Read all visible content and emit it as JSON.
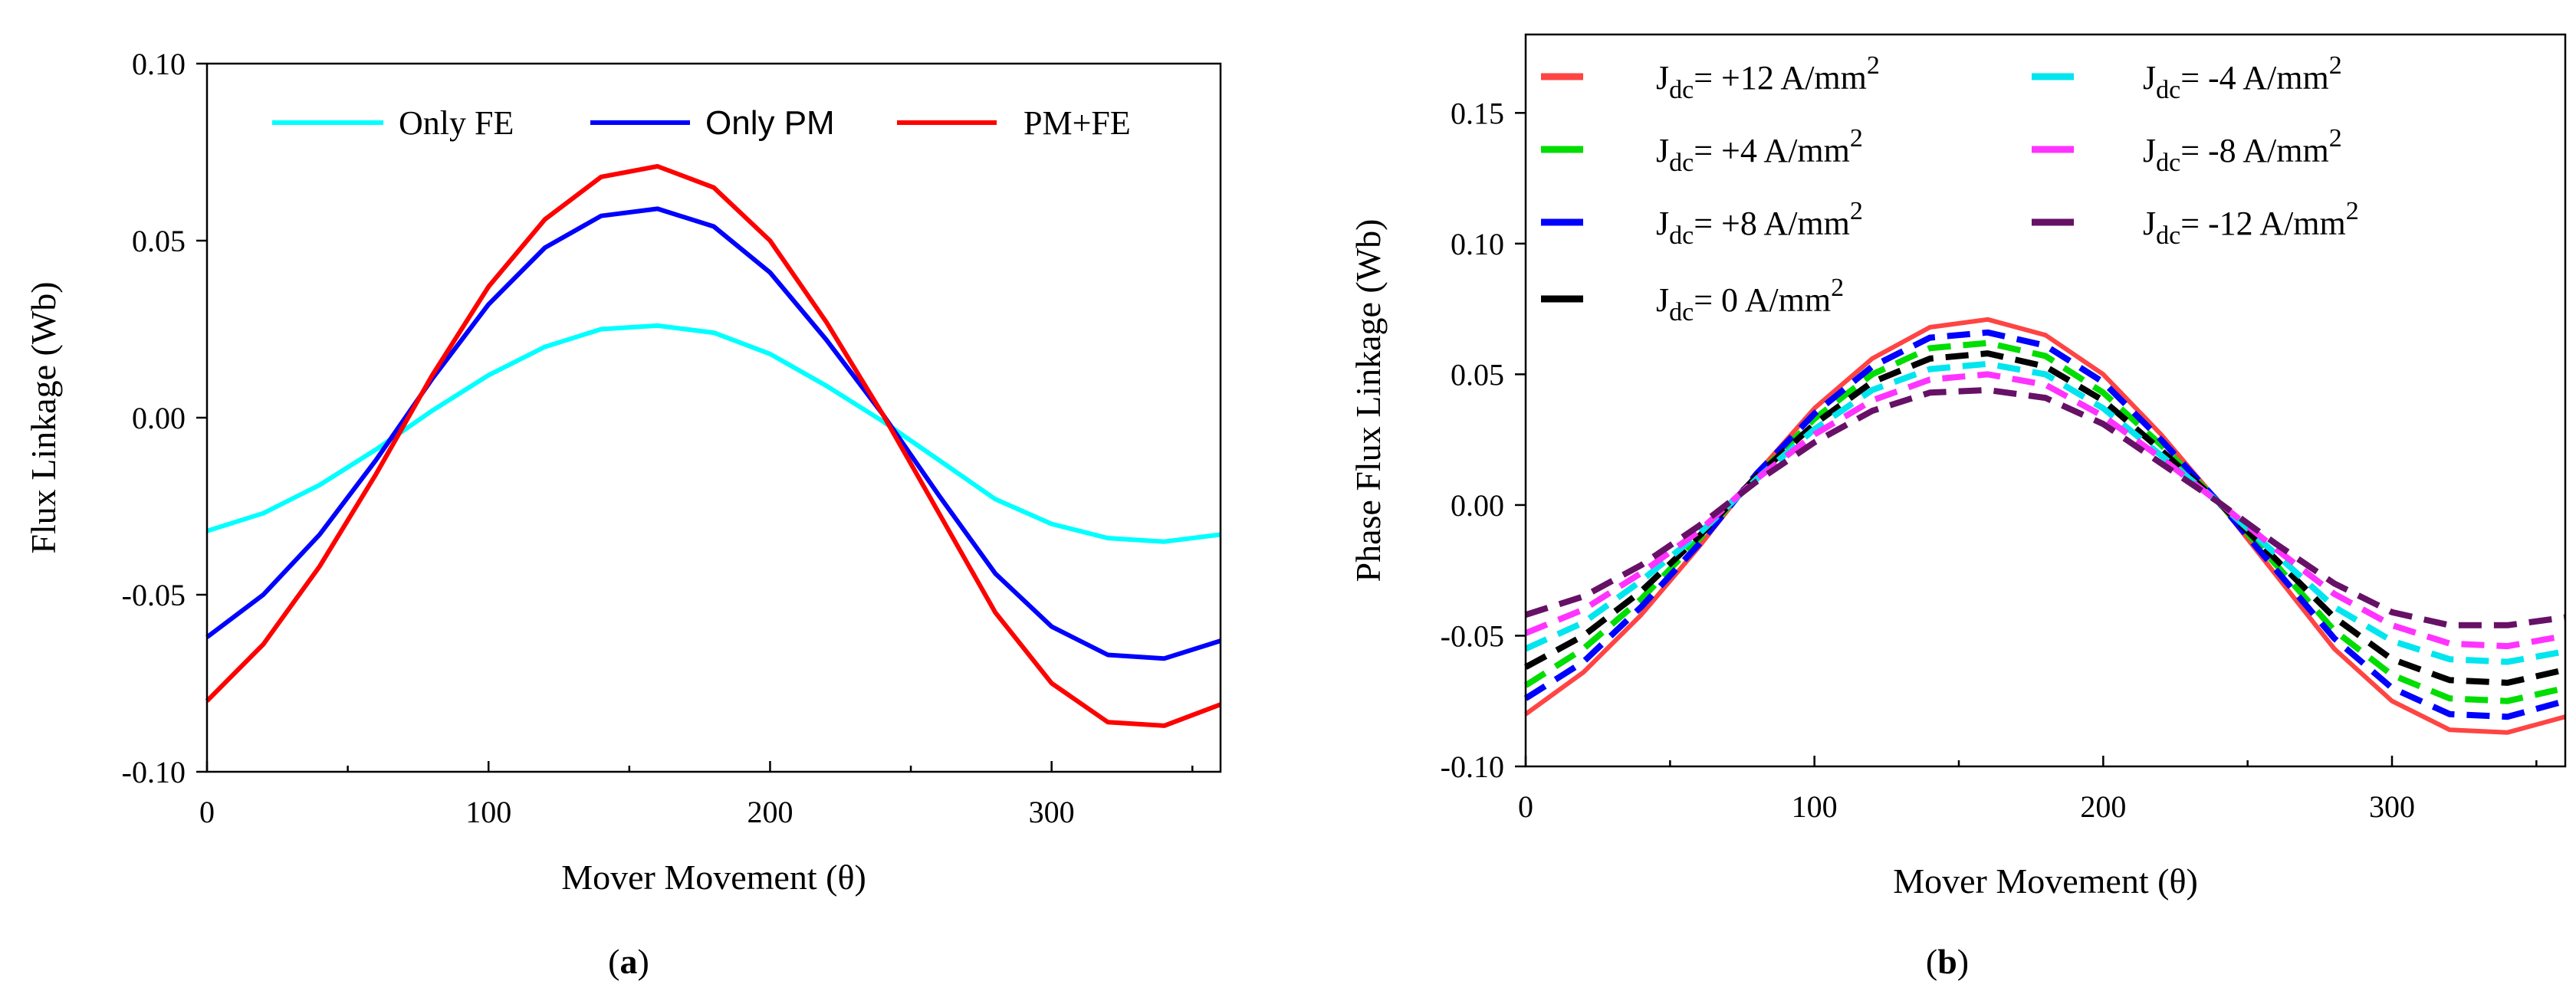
{
  "chart_data": [
    {
      "panel_label": "(a)",
      "panel_letter": "a",
      "type": "line",
      "xlabel": "Mover Movement (θ)",
      "ylabel": "Flux Linkage (Wb)",
      "xlim": [
        0,
        360
      ],
      "ylim": [
        -0.1,
        0.1
      ],
      "xticks": [
        "0",
        "100",
        "200",
        "300"
      ],
      "yticks": [
        "0.10",
        "0.05",
        "0.00",
        "-0.05",
        "-0.10"
      ],
      "grid": false,
      "legend_position": "top",
      "series": [
        {
          "name": "Only FE",
          "color": "#00ffff",
          "dash": "solid",
          "x": [
            0,
            20,
            40,
            60,
            80,
            100,
            120,
            140,
            160,
            180,
            200,
            220,
            240,
            260,
            280,
            300,
            320,
            340,
            360
          ],
          "y": [
            -0.032,
            -0.027,
            -0.019,
            -0.009,
            0.002,
            0.012,
            0.02,
            0.025,
            0.026,
            0.024,
            0.018,
            0.009,
            -0.001,
            -0.012,
            -0.023,
            -0.03,
            -0.034,
            -0.035,
            -0.033
          ]
        },
        {
          "name": "Only PM",
          "color": "#0000ff",
          "dash": "solid",
          "x": [
            0,
            20,
            40,
            60,
            80,
            100,
            120,
            140,
            160,
            180,
            200,
            220,
            240,
            260,
            280,
            300,
            320,
            340,
            360
          ],
          "y": [
            -0.062,
            -0.05,
            -0.033,
            -0.012,
            0.011,
            0.032,
            0.048,
            0.057,
            0.059,
            0.054,
            0.041,
            0.022,
            0.001,
            -0.022,
            -0.044,
            -0.059,
            -0.067,
            -0.068,
            -0.063
          ]
        },
        {
          "name": "PM+FE",
          "color": "#ff0000",
          "dash": "solid",
          "x": [
            0,
            20,
            40,
            60,
            80,
            100,
            120,
            140,
            160,
            180,
            200,
            220,
            240,
            260,
            280,
            300,
            320,
            340,
            360
          ],
          "y": [
            -0.08,
            -0.064,
            -0.042,
            -0.016,
            0.012,
            0.037,
            0.056,
            0.068,
            0.071,
            0.065,
            0.05,
            0.027,
            0.001,
            -0.027,
            -0.055,
            -0.075,
            -0.086,
            -0.087,
            -0.081
          ]
        }
      ]
    },
    {
      "panel_label": "(b)",
      "panel_letter": "b",
      "type": "line",
      "xlabel": "Mover Movement (θ)",
      "ylabel": "Phase Flux Linkage (Wb)",
      "xlim": [
        0,
        360
      ],
      "ylim": [
        -0.1,
        0.18
      ],
      "xticks": [
        "0",
        "100",
        "200",
        "300"
      ],
      "yticks": [
        "0.15",
        "0.10",
        "0.05",
        "0.00",
        "-0.05",
        "-0.10"
      ],
      "grid": false,
      "legend_position": "top",
      "series": [
        {
          "name": "Jdc= +12 A/mm2",
          "label_main": "J",
          "label_sub": "dc",
          "label_rest": "= +12 A/mm",
          "label_sup": "2",
          "color": "#ff4444",
          "dash": "solid",
          "x": [
            0,
            20,
            40,
            60,
            80,
            100,
            120,
            140,
            160,
            180,
            200,
            220,
            240,
            260,
            280,
            300,
            320,
            340,
            360
          ],
          "y": [
            -0.08,
            -0.064,
            -0.042,
            -0.016,
            0.012,
            0.037,
            0.056,
            0.068,
            0.071,
            0.065,
            0.05,
            0.027,
            0.001,
            -0.027,
            -0.055,
            -0.075,
            -0.086,
            -0.087,
            -0.081
          ]
        },
        {
          "name": "Jdc= +4 A/mm2",
          "label_main": "J",
          "label_sub": "dc",
          "label_rest": "= +4 A/mm",
          "label_sup": "2",
          "color": "#00dd00",
          "dash": "dashed",
          "x": [
            0,
            20,
            40,
            60,
            80,
            100,
            120,
            140,
            160,
            180,
            200,
            220,
            240,
            260,
            280,
            300,
            320,
            340,
            360
          ],
          "y": [
            -0.069,
            -0.055,
            -0.036,
            -0.013,
            0.011,
            0.033,
            0.05,
            0.06,
            0.062,
            0.057,
            0.043,
            0.023,
            0.001,
            -0.023,
            -0.048,
            -0.065,
            -0.074,
            -0.075,
            -0.07
          ]
        },
        {
          "name": "Jdc= +8 A/mm2",
          "label_main": "J",
          "label_sub": "dc",
          "label_rest": "= +8 A/mm",
          "label_sup": "2",
          "color": "#0000ff",
          "dash": "dashed",
          "x": [
            0,
            20,
            40,
            60,
            80,
            100,
            120,
            140,
            160,
            180,
            200,
            220,
            240,
            260,
            280,
            300,
            320,
            340,
            360
          ],
          "y": [
            -0.074,
            -0.06,
            -0.039,
            -0.015,
            0.012,
            0.035,
            0.053,
            0.064,
            0.066,
            0.061,
            0.047,
            0.025,
            0.001,
            -0.025,
            -0.051,
            -0.07,
            -0.08,
            -0.081,
            -0.075
          ]
        },
        {
          "name": "Jdc= 0 A/mm2",
          "label_main": "J",
          "label_sub": "dc",
          "label_rest": "= 0 A/mm",
          "label_sup": "2",
          "color": "#000000",
          "dash": "dashed",
          "x": [
            0,
            20,
            40,
            60,
            80,
            100,
            120,
            140,
            160,
            180,
            200,
            220,
            240,
            260,
            280,
            300,
            320,
            340,
            360
          ],
          "y": [
            -0.062,
            -0.05,
            -0.033,
            -0.012,
            0.011,
            0.031,
            0.047,
            0.056,
            0.058,
            0.053,
            0.04,
            0.021,
            0.001,
            -0.021,
            -0.043,
            -0.059,
            -0.067,
            -0.068,
            -0.063
          ]
        },
        {
          "name": "Jdc= -4 A/mm2",
          "label_main": "J",
          "label_sub": "dc",
          "label_rest": "= -4 A/mm",
          "label_sup": "2",
          "color": "#00e5ee",
          "dash": "dashed",
          "x": [
            0,
            20,
            40,
            60,
            80,
            100,
            120,
            140,
            160,
            180,
            200,
            220,
            240,
            260,
            280,
            300,
            320,
            340,
            360
          ],
          "y": [
            -0.055,
            -0.045,
            -0.029,
            -0.011,
            0.01,
            0.029,
            0.044,
            0.052,
            0.054,
            0.05,
            0.037,
            0.019,
            0.001,
            -0.019,
            -0.039,
            -0.052,
            -0.059,
            -0.06,
            -0.056
          ]
        },
        {
          "name": "Jdc= -8 A/mm2",
          "label_main": "J",
          "label_sub": "dc",
          "label_rest": "= -8 A/mm",
          "label_sup": "2",
          "color": "#ff33ff",
          "dash": "dashed",
          "x": [
            0,
            20,
            40,
            60,
            80,
            100,
            120,
            140,
            160,
            180,
            200,
            220,
            240,
            260,
            280,
            300,
            320,
            340,
            360
          ],
          "y": [
            -0.049,
            -0.04,
            -0.026,
            -0.01,
            0.01,
            0.027,
            0.04,
            0.048,
            0.05,
            0.046,
            0.034,
            0.018,
            0.001,
            -0.017,
            -0.034,
            -0.046,
            -0.053,
            -0.054,
            -0.05
          ]
        },
        {
          "name": "Jdc= -12 A/mm2",
          "label_main": "J",
          "label_sub": "dc",
          "label_rest": "= -12 A/mm",
          "label_sup": "2",
          "color": "#661166",
          "dash": "dashed",
          "x": [
            0,
            20,
            40,
            60,
            80,
            100,
            120,
            140,
            160,
            180,
            200,
            220,
            240,
            260,
            280,
            300,
            320,
            340,
            360
          ],
          "y": [
            -0.042,
            -0.035,
            -0.023,
            -0.008,
            0.009,
            0.024,
            0.036,
            0.043,
            0.044,
            0.041,
            0.031,
            0.016,
            0.001,
            -0.015,
            -0.03,
            -0.041,
            -0.046,
            -0.046,
            -0.043
          ]
        }
      ]
    }
  ]
}
